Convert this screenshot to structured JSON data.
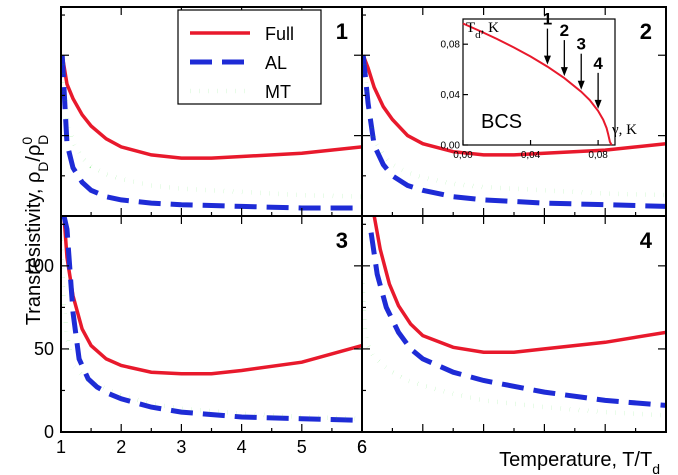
{
  "chart_data": {
    "type": "line",
    "ylabel": "Transresistivity, ρ",
    "ylabel_sub1": "D",
    "ylabel_mid": "/ρ",
    "ylabel_sup": "0",
    "ylabel_sub2": "D",
    "xlabel": "Temperature, T/T",
    "xlabel_sub": "d",
    "xlim": [
      1,
      6
    ],
    "ylim": [
      0,
      130
    ],
    "x_ticks": [
      "1",
      "2",
      "3",
      "4",
      "5",
      "6"
    ],
    "y_ticks": [
      "0",
      "50",
      "100"
    ],
    "legend": [
      {
        "label": "Full",
        "color": "#e8192c",
        "style": "solid"
      },
      {
        "label": "AL",
        "color": "#1e2bd6",
        "style": "dash"
      },
      {
        "label": "MT",
        "color": "#1fd81f",
        "style": "dot"
      }
    ],
    "panels": [
      {
        "id": "1",
        "label": "1",
        "series": [
          {
            "name": "Full",
            "x": [
              1.02,
              1.1,
              1.2,
              1.35,
              1.5,
              1.75,
              2,
              2.5,
              3,
              3.5,
              4,
              5,
              6
            ],
            "y": [
              100,
              82,
              73,
              63,
              56,
              48,
              43,
              38,
              36,
              36,
              37,
              39,
              43
            ]
          },
          {
            "name": "AL",
            "x": [
              1.02,
              1.1,
              1.2,
              1.35,
              1.5,
              1.75,
              2,
              2.5,
              3,
              4,
              5,
              6
            ],
            "y": [
              100,
              45,
              30,
              21,
              16,
              12,
              10,
              8,
              7,
              6,
              5,
              5
            ]
          },
          {
            "name": "MT",
            "x": [
              1.02,
              1.1,
              1.2,
              1.35,
              1.5,
              1.75,
              2,
              2.5,
              3,
              4,
              5,
              6
            ],
            "y": [
              100,
              60,
              46,
              36,
              31,
              26,
              23,
              19,
              17,
              15,
              13,
              12
            ]
          }
        ]
      },
      {
        "id": "2",
        "label": "2",
        "series": [
          {
            "name": "Full",
            "x": [
              1.02,
              1.1,
              1.2,
              1.35,
              1.5,
              1.75,
              2,
              2.5,
              3,
              3.5,
              4,
              5,
              6
            ],
            "y": [
              100,
              92,
              80,
              68,
              60,
              50,
              45,
              40,
              38,
              38,
              39,
              41,
              45
            ]
          },
          {
            "name": "AL",
            "x": [
              1.02,
              1.1,
              1.2,
              1.35,
              1.5,
              1.75,
              2,
              2.5,
              3,
              4,
              5,
              6
            ],
            "y": [
              100,
              70,
              44,
              32,
              25,
              19,
              16,
              12,
              10,
              8,
              7,
              6
            ]
          },
          {
            "name": "MT",
            "x": [
              1.02,
              1.1,
              1.2,
              1.35,
              1.5,
              1.75,
              2,
              2.5,
              3,
              4,
              5,
              6
            ],
            "y": [
              100,
              70,
              48,
              38,
              32,
              27,
              24,
              20,
              18,
              16,
              14,
              13
            ]
          }
        ]
      },
      {
        "id": "3",
        "label": "3",
        "series": [
          {
            "name": "Full",
            "x": [
              1.05,
              1.1,
              1.2,
              1.35,
              1.5,
              1.75,
              2,
              2.5,
              3,
              3.5,
              4,
              5,
              6
            ],
            "y": [
              130,
              105,
              82,
              62,
              52,
              44,
              40,
              36,
              35,
              35,
              37,
              42,
              52
            ]
          },
          {
            "name": "AL",
            "x": [
              1.05,
              1.1,
              1.2,
              1.3,
              1.45,
              1.6,
              1.8,
              2,
              2.5,
              3,
              4,
              5,
              6
            ],
            "y": [
              130,
              122,
              72,
              44,
              32,
              27,
              23,
              20,
              15,
              12,
              9,
              8,
              7
            ]
          },
          {
            "name": "MT",
            "x": [
              1,
              1.05,
              1.1,
              1.2,
              1.35,
              1.5,
              1.75,
              2,
              2.5,
              3,
              4,
              5,
              6
            ],
            "y": [
              115,
              75,
              58,
              40,
              34,
              30,
              26,
              22,
              17,
              14,
              11,
              9,
              8
            ]
          }
        ]
      },
      {
        "id": "4",
        "label": "4",
        "series": [
          {
            "name": "Full",
            "x": [
              1.2,
              1.3,
              1.45,
              1.6,
              1.8,
              2,
              2.5,
              3,
              3.5,
              4,
              5,
              6
            ],
            "y": [
              130,
              110,
              89,
              76,
              65,
              58,
              51,
              48,
              48,
              50,
              54,
              60
            ]
          },
          {
            "name": "AL",
            "x": [
              1.15,
              1.25,
              1.4,
              1.6,
              1.8,
              2,
              2.5,
              3,
              4,
              5,
              6
            ],
            "y": [
              120,
              95,
              75,
              60,
              50,
              44,
              36,
              31,
              24,
              19,
              16
            ]
          },
          {
            "name": "MT",
            "x": [
              1,
              1.05,
              1.1,
              1.2,
              1.35,
              1.5,
              1.75,
              2,
              2.5,
              3,
              4,
              5,
              6
            ],
            "y": [
              95,
              60,
              52,
              45,
              40,
              36,
              31,
              28,
              23,
              19,
              15,
              12,
              10
            ]
          }
        ]
      }
    ],
    "inset": {
      "title": "BCS",
      "ylabel": "T",
      "ylabel_sub": "d",
      "ylabel_unit": ", K",
      "xlabel": "γ, K",
      "xlim": [
        0,
        0.09
      ],
      "ylim": [
        0,
        0.1
      ],
      "x_ticks": [
        "0,00",
        "0,04",
        "0,08"
      ],
      "y_ticks": [
        "0,00",
        "0,04",
        "0,08"
      ],
      "curve_x": [
        0,
        0.01,
        0.02,
        0.03,
        0.04,
        0.05,
        0.06,
        0.07,
        0.075,
        0.08,
        0.083,
        0.085,
        0.086,
        0.087,
        0.088
      ],
      "curve_y": [
        0.0964,
        0.0905,
        0.0842,
        0.0775,
        0.0702,
        0.0622,
        0.0531,
        0.0423,
        0.0357,
        0.0271,
        0.0201,
        0.0134,
        0.0085,
        0.0025,
        0
      ],
      "arrows": [
        {
          "label": "1",
          "x": 0.05
        },
        {
          "label": "2",
          "x": 0.06
        },
        {
          "label": "3",
          "x": 0.07
        },
        {
          "label": "4",
          "x": 0.08
        }
      ]
    }
  }
}
